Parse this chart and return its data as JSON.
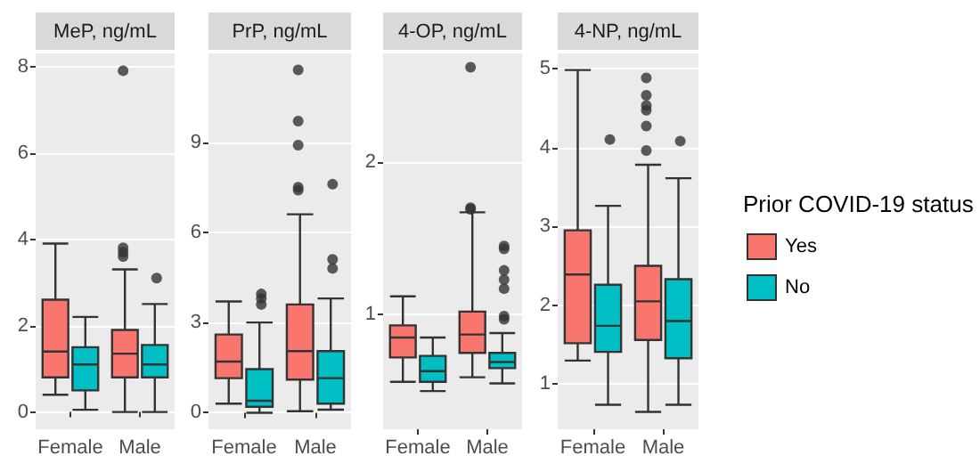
{
  "chart_data": [
    {
      "type": "box",
      "title": "MeP, ng/mL",
      "categories": [
        "Female",
        "Male"
      ],
      "ylim": [
        -0.4,
        8.3
      ],
      "yticks": [
        0,
        2,
        4,
        6,
        8
      ],
      "grid": "y",
      "legend": false,
      "series": [
        {
          "color": "#f8766d",
          "boxes": [
            {
              "low": 0.4,
              "q1": 0.8,
              "median": 1.4,
              "q3": 2.6,
              "high": 3.9
            },
            {
              "low": 0,
              "q1": 0.8,
              "median": 1.35,
              "q3": 1.9,
              "high": 3.3,
              "outliers": [
                3.6,
                3.7,
                3.8,
                7.9
              ]
            }
          ]
        },
        {
          "color": "#00bfc4",
          "boxes": [
            {
              "low": 0.05,
              "q1": 0.5,
              "median": 1.1,
              "q3": 1.5,
              "high": 2.2
            },
            {
              "low": 0,
              "q1": 0.8,
              "median": 1.1,
              "q3": 1.55,
              "high": 2.5,
              "outliers": [
                3.1
              ]
            }
          ]
        }
      ]
    },
    {
      "type": "box",
      "title": "PrP, ng/mL",
      "categories": [
        "Female",
        "Male"
      ],
      "ylim": [
        -0.55,
        11.95
      ],
      "yticks": [
        0,
        3,
        6,
        9
      ],
      "grid": "y",
      "legend": false,
      "series": [
        {
          "color": "#f8766d",
          "boxes": [
            {
              "low": 0.3,
              "q1": 1.15,
              "median": 1.7,
              "q3": 2.6,
              "high": 3.7
            },
            {
              "low": 0.05,
              "q1": 1.1,
              "median": 2.05,
              "q3": 3.6,
              "high": 6.6,
              "outliers": [
                7.4,
                7.5,
                8.9,
                9.7,
                11.4
              ]
            }
          ]
        },
        {
          "color": "#00bfc4",
          "boxes": [
            {
              "low": 0,
              "q1": 0.2,
              "median": 0.4,
              "q3": 1.45,
              "high": 3.0,
              "outliers": [
                3.6,
                3.8,
                3.95
              ]
            },
            {
              "low": 0.1,
              "q1": 0.3,
              "median": 1.15,
              "q3": 2.05,
              "high": 3.8,
              "outliers": [
                4.8,
                5.1,
                7.6
              ]
            }
          ]
        }
      ]
    },
    {
      "type": "box",
      "title": "4-OP, ng/mL",
      "categories": [
        "Female",
        "Male"
      ],
      "ylim": [
        0.25,
        2.71
      ],
      "yticks": [
        1,
        2
      ],
      "grid": "y",
      "legend": false,
      "series": [
        {
          "color": "#f8766d",
          "boxes": [
            {
              "low": 0.56,
              "q1": 0.72,
              "median": 0.85,
              "q3": 0.93,
              "high": 1.12
            },
            {
              "low": 0.59,
              "q1": 0.75,
              "median": 0.87,
              "q3": 1.02,
              "high": 1.67,
              "outliers": [
                1.69,
                1.7,
                2.62
              ]
            }
          ]
        },
        {
          "color": "#00bfc4",
          "boxes": [
            {
              "low": 0.5,
              "q1": 0.56,
              "median": 0.63,
              "q3": 0.73,
              "high": 0.85
            },
            {
              "low": 0.55,
              "q1": 0.65,
              "median": 0.69,
              "q3": 0.75,
              "high": 0.88,
              "outliers": [
                0.97,
                0.99,
                1.17,
                1.23,
                1.29,
                1.43,
                1.45
              ]
            }
          ]
        }
      ]
    },
    {
      "type": "box",
      "title": "4-NP, ng/mL",
      "categories": [
        "Female",
        "Male"
      ],
      "ylim": [
        0.43,
        5.19
      ],
      "yticks": [
        1,
        2,
        3,
        4,
        5
      ],
      "grid": "y",
      "legend": "right",
      "legend_title": "Prior COVID-19 status",
      "series": [
        {
          "name": "Yes",
          "color": "#f8766d",
          "boxes": [
            {
              "low": 1.3,
              "q1": 1.52,
              "median": 2.39,
              "q3": 2.95,
              "high": 4.98
            },
            {
              "low": 0.65,
              "q1": 1.56,
              "median": 2.05,
              "q3": 2.5,
              "high": 3.78,
              "outliers": [
                3.96,
                4.27,
                4.47,
                4.53,
                4.66,
                4.88
              ]
            }
          ]
        },
        {
          "name": "No",
          "color": "#00bfc4",
          "boxes": [
            {
              "low": 0.74,
              "q1": 1.41,
              "median": 1.74,
              "q3": 2.26,
              "high": 3.26,
              "outliers": [
                4.1
              ]
            },
            {
              "low": 0.74,
              "q1": 1.33,
              "median": 1.8,
              "q3": 2.33,
              "high": 3.61,
              "outliers": [
                4.08
              ]
            }
          ]
        }
      ]
    }
  ]
}
